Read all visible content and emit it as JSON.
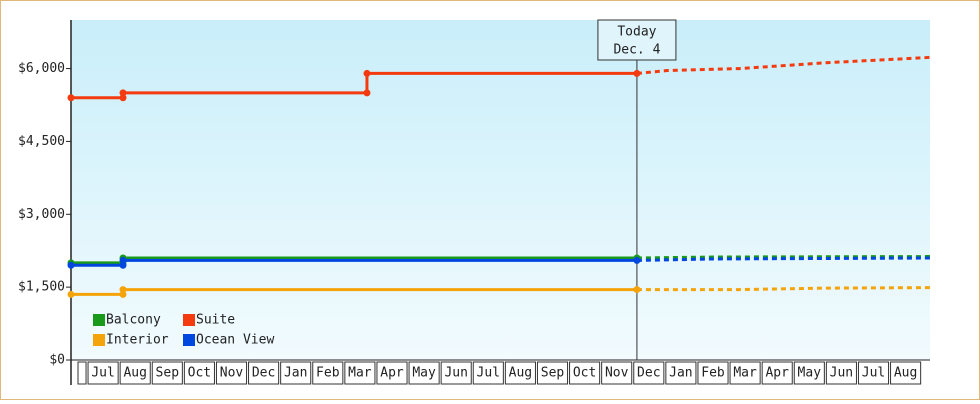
{
  "chart_data": {
    "type": "step-line",
    "categories": [
      "Jul",
      "Aug",
      "Sep",
      "Oct",
      "Nov",
      "Dec",
      "Jan",
      "Feb",
      "Mar",
      "Apr",
      "May",
      "Jun",
      "Jul",
      "Aug",
      "Sep",
      "Oct",
      "Nov",
      "Dec",
      "Jan",
      "Feb",
      "Mar",
      "Apr",
      "May",
      "Jun",
      "Jul",
      "Aug"
    ],
    "xlim": [
      -0.5,
      26.26
    ],
    "ylim": [
      0,
      7000
    ],
    "yticks": [
      {
        "value": 0,
        "label": "$0"
      },
      {
        "value": 1500,
        "label": "$1,500"
      },
      {
        "value": 3000,
        "label": "$3,000"
      },
      {
        "value": 4500,
        "label": "$4,500"
      },
      {
        "value": 6000,
        "label": "$6,000"
      }
    ],
    "annotation": {
      "x": 17.13,
      "lines": [
        "Today",
        "Dec. 4"
      ]
    },
    "legend": "bottom-left",
    "series": [
      {
        "name": "Balcony",
        "color": "#1a9a1a",
        "x": [
          -0.5,
          1.12,
          1.12,
          17.13
        ],
        "values": [
          2000,
          2000,
          2100,
          2100
        ],
        "forecast_x": [
          17.13,
          19.5,
          26.26
        ],
        "forecast_values": [
          2100,
          2120,
          2130
        ]
      },
      {
        "name": "Suite",
        "color": "#f43b10",
        "x": [
          -0.5,
          1.12,
          1.12,
          8.72,
          8.72,
          17.13
        ],
        "values": [
          5400,
          5400,
          5500,
          5500,
          5900,
          5900
        ],
        "forecast_x": [
          17.13,
          18.07,
          20.34,
          23.02,
          26.26
        ],
        "forecast_values": [
          5900,
          5960,
          6000,
          6120,
          6230
        ]
      },
      {
        "name": "Interior",
        "color": "#f5a30a",
        "x": [
          -0.5,
          1.12,
          1.12,
          17.13
        ],
        "values": [
          1350,
          1350,
          1450,
          1450
        ],
        "forecast_x": [
          17.13,
          20.34,
          23.02,
          26.26
        ],
        "forecast_values": [
          1450,
          1450,
          1480,
          1490
        ]
      },
      {
        "name": "Ocean View",
        "color": "#0047e0",
        "x": [
          -0.5,
          1.12,
          1.12,
          17.13
        ],
        "values": [
          1950,
          1950,
          2050,
          2050
        ],
        "forecast_x": [
          17.13,
          19.5,
          26.26
        ],
        "forecast_values": [
          2050,
          2080,
          2100
        ]
      }
    ]
  }
}
